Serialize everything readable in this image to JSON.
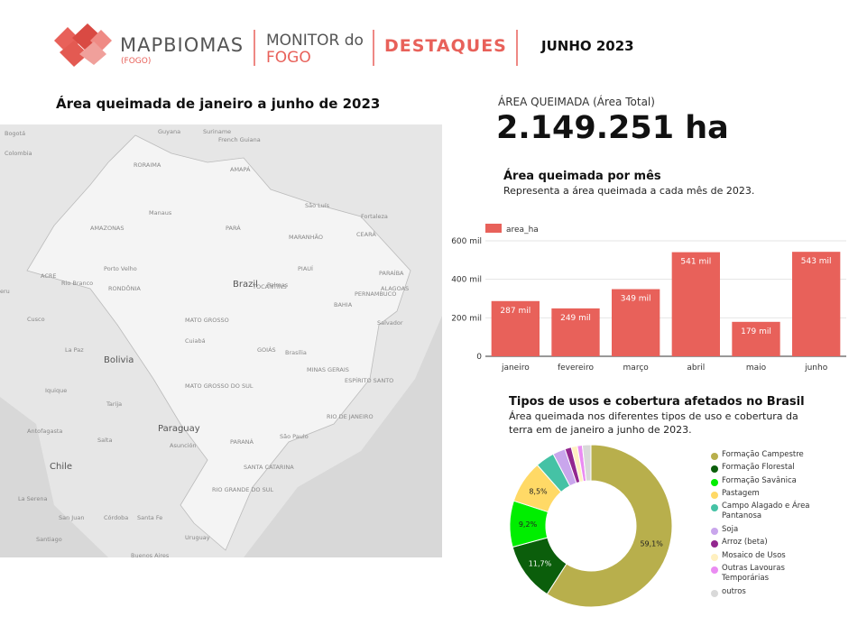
{
  "header": {
    "brand": "MAPBIOMAS",
    "brand_sub": "(FOGO)",
    "monitor_line1": "MONITOR do",
    "monitor_line2": "FOGO",
    "section": "DESTAQUES",
    "period": "JUNHO 2023"
  },
  "map": {
    "title": "Área queimada de janeiro a junho de 2023",
    "labels": [
      "Bogotá",
      "Colombia",
      "Guyana",
      "Suriname",
      "French Guiana",
      "RORAIMA",
      "AMAPÁ",
      "Manaus",
      "AMAZONAS",
      "PARÁ",
      "MARANHÃO",
      "São Luís",
      "Fortaleza",
      "CEARÁ",
      "PARAÍBA",
      "PERNAMBUCO",
      "ALAGOAS",
      "BAHIA",
      "Salvador",
      "PIAUÍ",
      "TOCANTINS",
      "Palmas",
      "Brazil",
      "ACRE",
      "Rio Branco",
      "Porto Velho",
      "RONDÔNIA",
      "eru",
      "Cusco",
      "MATO GROSSO",
      "Cuiabá",
      "GOIÁS",
      "Brasília",
      "La Paz",
      "Bolivia",
      "MINAS GERAIS",
      "ESPÍRITO SANTO",
      "RIO DE JANEIRO",
      "MATO GROSSO DO SUL",
      "São Paulo",
      "PARANÁ",
      "SANTA CATARINA",
      "RIO GRANDE DO SUL",
      "Paraguay",
      "Asunción",
      "Iquique",
      "Tarija",
      "Antofagasta",
      "Salta",
      "Chile",
      "La Serena",
      "San Juan",
      "Córdoba",
      "Santa Fe",
      "Santiago",
      "Uruguay",
      "Buenos Aires"
    ]
  },
  "kpi": {
    "label": "ÁREA QUEIMADA (Área Total)",
    "value": "2.149.251 ha"
  },
  "chart_data": [
    {
      "type": "bar",
      "title": "Área queimada por mês",
      "subtitle": "Representa a área queimada a cada mês de 2023.",
      "categories": [
        "janeiro",
        "fevereiro",
        "março",
        "abril",
        "maio",
        "junho"
      ],
      "series": [
        {
          "name": "area_ha",
          "color": "#e8615a",
          "values": [
            287000,
            249000,
            349000,
            541000,
            179000,
            543000
          ],
          "value_labels": [
            "287 mil",
            "249 mil",
            "349 mil",
            "541 mil",
            "179 mil",
            "543 mil"
          ]
        }
      ],
      "ylim": [
        0,
        600000
      ],
      "yticks": [
        0,
        {
          "value": 200000,
          "label": "200 mil"
        },
        {
          "value": 400000,
          "label": "400 mil"
        },
        {
          "value": 600000,
          "label": "600 mil"
        }
      ],
      "grid": true
    },
    {
      "type": "donut",
      "title": "Tipos de usos e cobertura afetados no Brasil",
      "subtitle": "Área queimada nos diferentes tipos de uso e cobertura da terra em de janeiro a junho de 2023.",
      "categories": [
        "Formação Campestre",
        "Formação Florestal",
        "Formação Savânica",
        "Pastagem",
        "Campo Alagado e Área Pantanosa",
        "Soja",
        "Arroz (beta)",
        "Mosaico de Usos",
        "Outras Lavouras Temporárias",
        "outros"
      ],
      "values": [
        59.1,
        11.7,
        9.2,
        8.5,
        3.8,
        2.5,
        1.3,
        1.2,
        1.0,
        1.7
      ],
      "value_labels": [
        "59,1%",
        "11,7%",
        "9,2%",
        "8,5%",
        null,
        null,
        null,
        null,
        null,
        null
      ],
      "colors": [
        "#b8af4c",
        "#0b5e0b",
        "#00ee00",
        "#ffd966",
        "#45c2a5",
        "#c9a6ec",
        "#93278f",
        "#fff0c0",
        "#ea8cf2",
        "#d9d9d9"
      ]
    }
  ]
}
